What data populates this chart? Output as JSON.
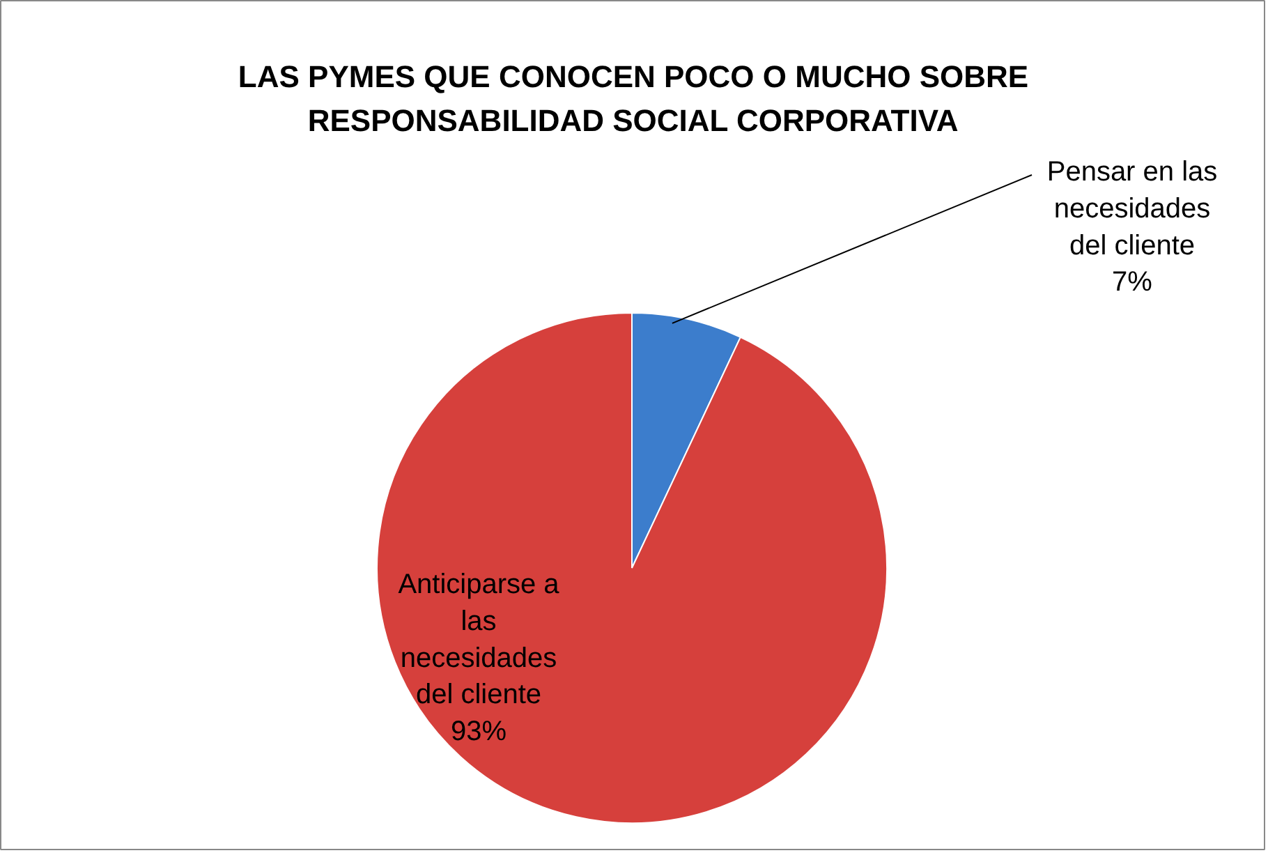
{
  "chart_data": {
    "type": "pie",
    "title": "LAS PYMES QUE CONOCEN POCO O MUCHO SOBRE RESPONSABILIDAD SOCIAL CORPORATIVA",
    "categories": [
      "Pensar en las necesidades del cliente",
      "Anticiparse a las necesidades del cliente"
    ],
    "values": [
      7,
      93
    ],
    "colors": [
      "#3c7dcc",
      "#d6403c"
    ],
    "value_labels": [
      "7%",
      "93%"
    ]
  }
}
